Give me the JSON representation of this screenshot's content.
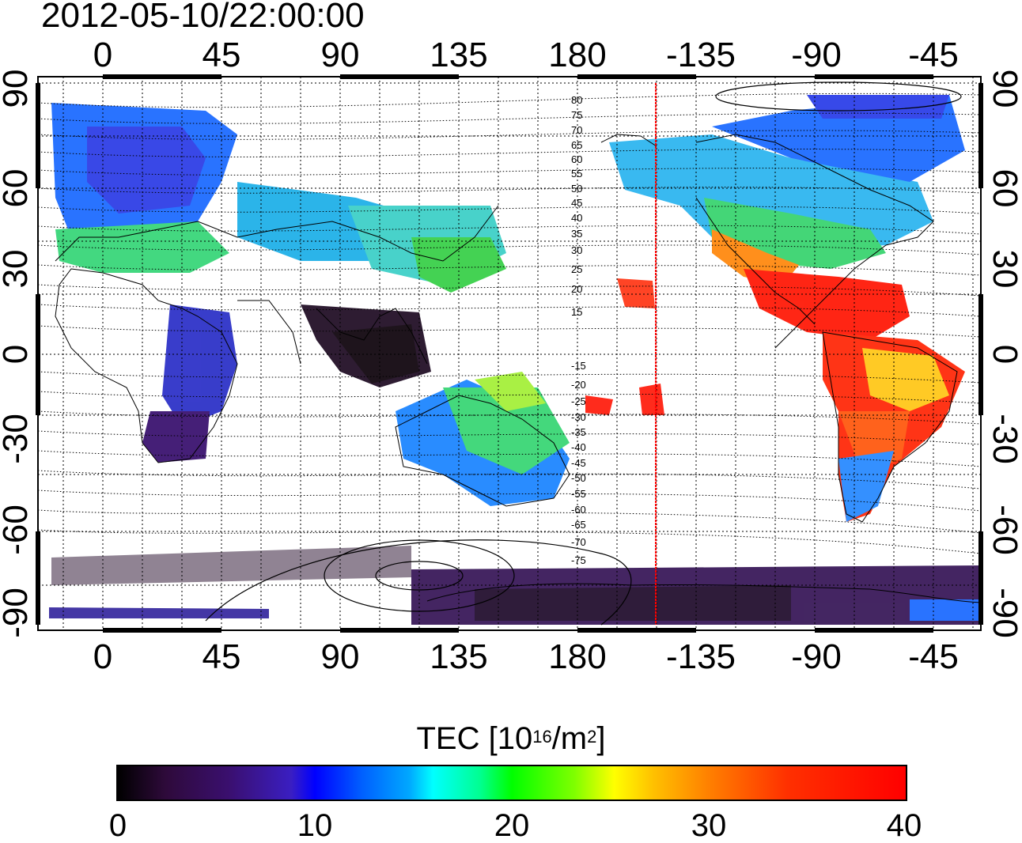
{
  "title": "2012-05-10/22:00:00",
  "axes": {
    "x_top": [
      "0",
      "45",
      "90",
      "135",
      "180",
      "-135",
      "-90",
      "-45"
    ],
    "x_bottom": [
      "0",
      "45",
      "90",
      "135",
      "180",
      "-135",
      "-90",
      "-45"
    ],
    "y_left": [
      "90",
      "60",
      "30",
      "0",
      "-30",
      "-60",
      "-90"
    ],
    "y_right": [
      "90",
      "60",
      "30",
      "0",
      "-30",
      "-60",
      "-90"
    ]
  },
  "contour_labels": [
    "80",
    "75",
    "70",
    "65",
    "60",
    "55",
    "50",
    "45",
    "40",
    "35",
    "30",
    "25",
    "20",
    "15",
    "-15",
    "-20",
    "-25",
    "-30",
    "-35",
    "-40",
    "-45",
    "-50",
    "-55",
    "-60",
    "-65",
    "-70",
    "-75"
  ],
  "colorbar": {
    "title_main": "TEC  [10",
    "title_sup1": "16",
    "title_mid": "/m",
    "title_sup2": "2",
    "title_end": "]",
    "ticks": [
      "0",
      "10",
      "20",
      "30",
      "40"
    ]
  },
  "colors": {
    "marker_line": "#ff0000",
    "frame": "#000000"
  }
}
